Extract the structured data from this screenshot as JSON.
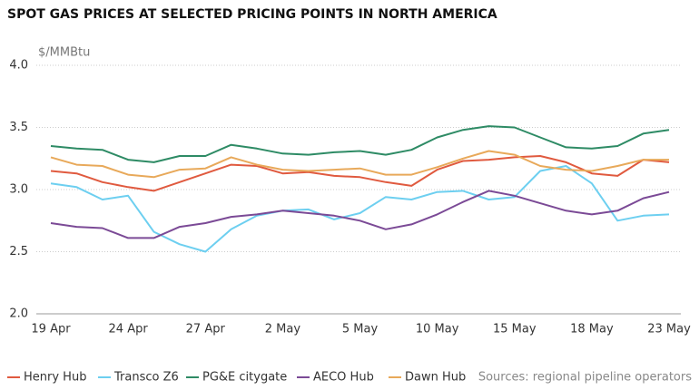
{
  "chart_data": {
    "type": "line",
    "title": "SPOT GAS PRICES AT SELECTED PRICING POINTS IN NORTH AMERICA",
    "y_label": "$/MMBtu",
    "source": "Sources: regional pipeline operators",
    "categories": [
      "19 Apr",
      null,
      null,
      "24 Apr",
      null,
      null,
      "27 Apr",
      null,
      null,
      "2 May",
      null,
      null,
      "5 May",
      null,
      null,
      "10 May",
      null,
      null,
      "15 May",
      null,
      null,
      "18 May",
      null,
      null,
      "23 May"
    ],
    "ylim": [
      2.0,
      4.0
    ],
    "yticks": [
      {
        "value": 2.0,
        "label": "2.0"
      },
      2.5,
      {
        "value": 3.0,
        "label": "3.0"
      },
      3.5,
      {
        "value": 4.0,
        "label": "4.0"
      }
    ],
    "grid": true,
    "legend": "bottom",
    "series": [
      {
        "name": "Henry Hub",
        "color": "#e05a3f",
        "values": [
          3.15,
          3.13,
          3.06,
          3.02,
          2.99,
          3.06,
          3.13,
          3.2,
          3.19,
          3.13,
          3.14,
          3.11,
          3.1,
          3.06,
          3.03,
          3.16,
          3.23,
          3.24,
          3.26,
          3.27,
          3.22,
          3.13,
          3.11,
          3.24,
          3.22
        ]
      },
      {
        "name": "Transco Z6",
        "color": "#6dcff0",
        "values": [
          3.05,
          3.02,
          2.92,
          2.95,
          2.66,
          2.56,
          2.5,
          2.68,
          2.79,
          2.83,
          2.84,
          2.76,
          2.81,
          2.94,
          2.92,
          2.98,
          2.99,
          2.92,
          2.94,
          3.15,
          3.19,
          3.05,
          2.75,
          2.79,
          2.8
        ]
      },
      {
        "name": "PG&E citygate",
        "color": "#2e8b65",
        "values": [
          3.35,
          3.33,
          3.32,
          3.24,
          3.22,
          3.27,
          3.27,
          3.36,
          3.33,
          3.29,
          3.28,
          3.3,
          3.31,
          3.28,
          3.32,
          3.42,
          3.48,
          3.51,
          3.5,
          3.42,
          3.34,
          3.33,
          3.35,
          3.45,
          3.48
        ]
      },
      {
        "name": "AECO Hub",
        "color": "#7b4a96",
        "values": [
          2.73,
          2.7,
          2.69,
          2.61,
          2.61,
          2.7,
          2.73,
          2.78,
          2.8,
          2.83,
          2.81,
          2.79,
          2.75,
          2.68,
          2.72,
          2.8,
          2.9,
          2.99,
          2.95,
          2.89,
          2.83,
          2.8,
          2.83,
          2.93,
          2.98
        ]
      },
      {
        "name": "Dawn Hub",
        "color": "#e8a95a",
        "values": [
          3.26,
          3.2,
          3.19,
          3.12,
          3.1,
          3.16,
          3.17,
          3.26,
          3.2,
          3.16,
          3.15,
          3.16,
          3.17,
          3.12,
          3.12,
          3.18,
          3.25,
          3.31,
          3.28,
          3.19,
          3.16,
          3.15,
          3.19,
          3.24,
          3.24
        ]
      }
    ]
  }
}
